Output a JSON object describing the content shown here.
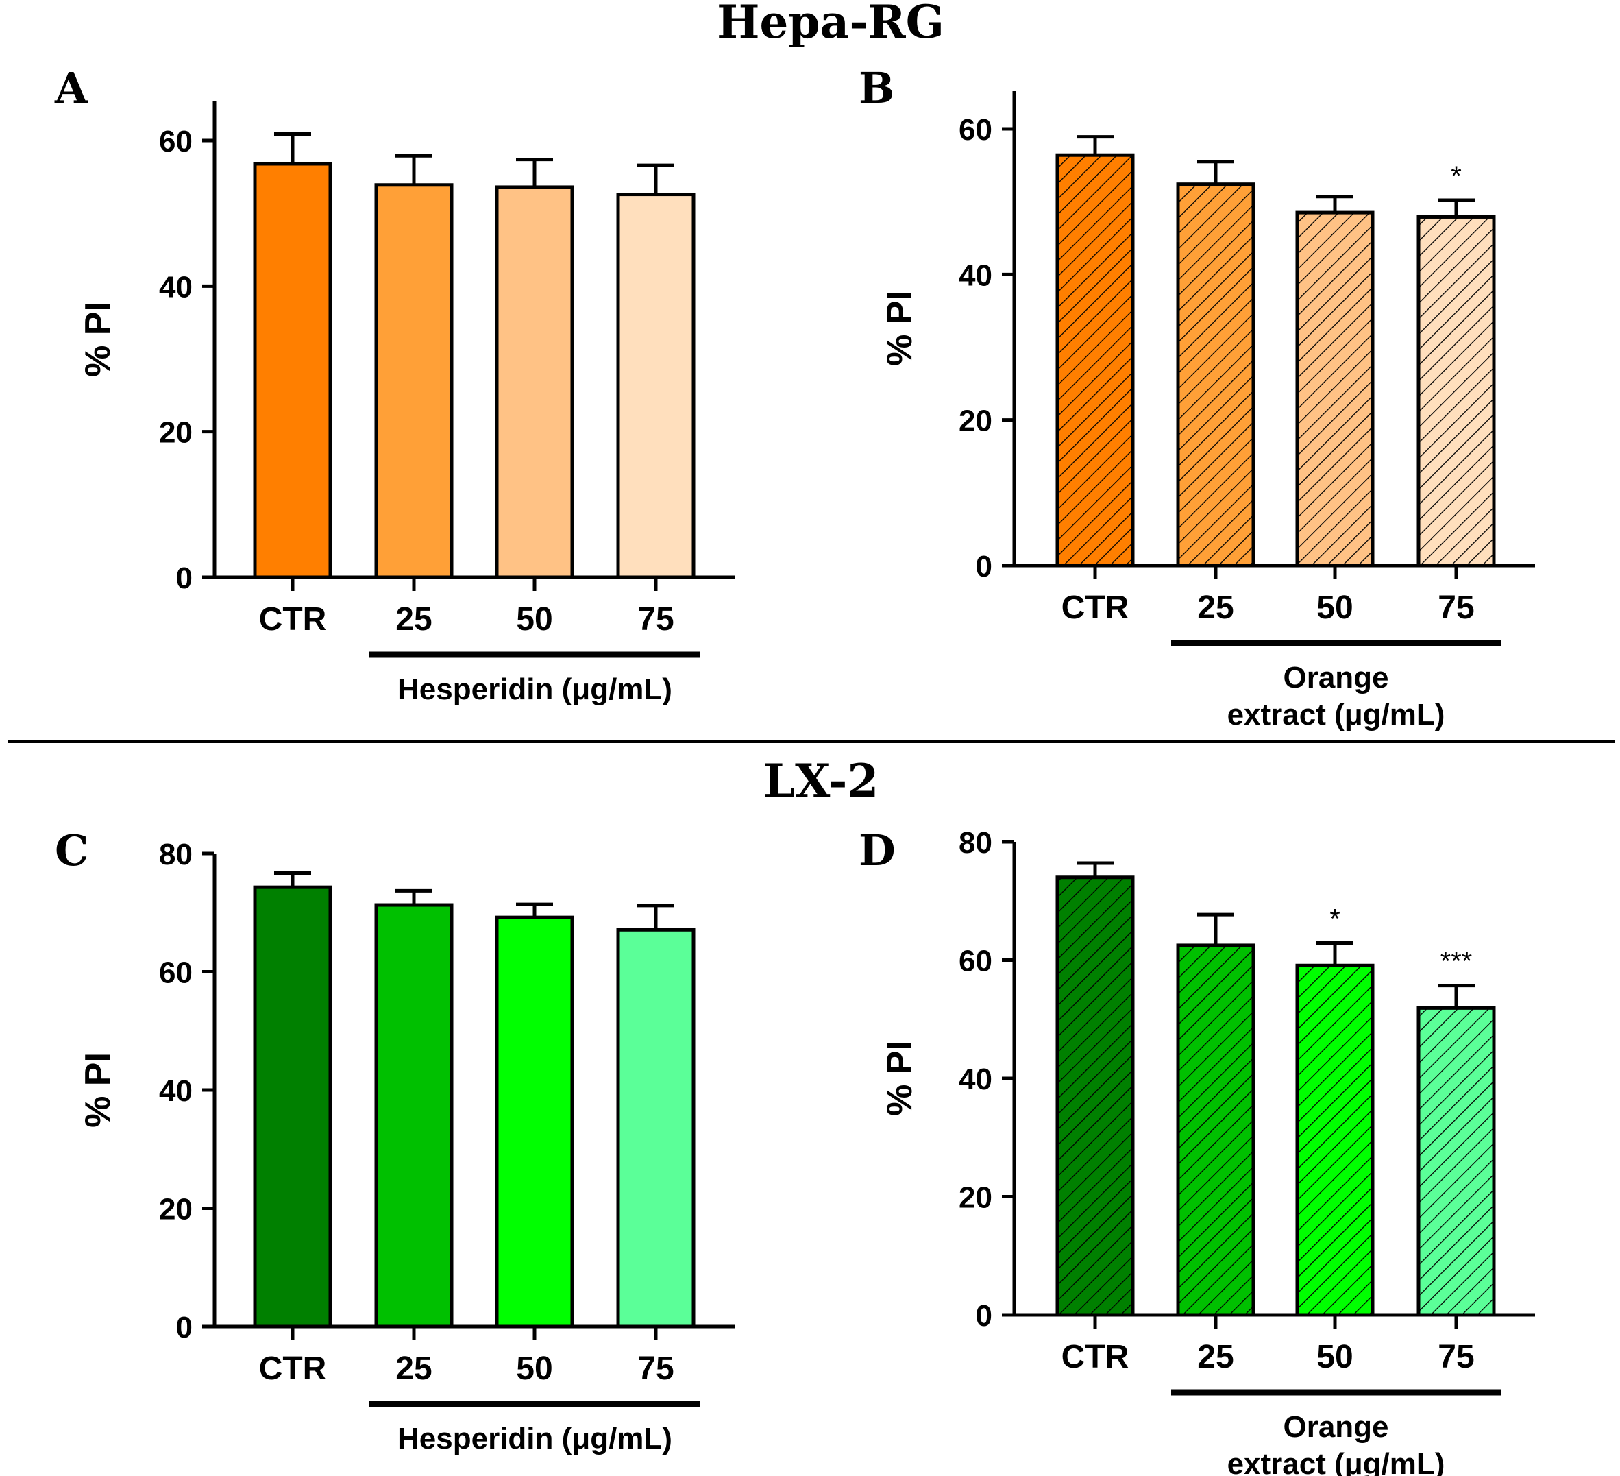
{
  "figure": {
    "top_title": "Hepa-RG",
    "bottom_title": "LX-2"
  },
  "chart_data": [
    {
      "id": "A",
      "panel_label": "A",
      "type": "bar",
      "ylabel": "% PI",
      "ylim": [
        0,
        65
      ],
      "yticks": [
        0,
        20,
        40,
        60
      ],
      "categories": [
        "CTR",
        "25",
        "50",
        "75"
      ],
      "group_label_lines": [
        "Hesperidin (μg/mL)"
      ],
      "values": [
        56.8,
        53.9,
        53.6,
        52.6
      ],
      "errors": [
        4.1,
        4.0,
        3.8,
        4.0
      ],
      "annotations": [
        "",
        "",
        "",
        ""
      ],
      "hatched": false,
      "colors": [
        "#ff7f00",
        "#ffa037",
        "#ffc285",
        "#ffdfbd"
      ]
    },
    {
      "id": "B",
      "panel_label": "B",
      "type": "bar",
      "ylabel": "% PI",
      "ylim": [
        0,
        65
      ],
      "yticks": [
        0,
        20,
        40,
        60
      ],
      "categories": [
        "CTR",
        "25",
        "50",
        "75"
      ],
      "group_label_lines": [
        "Orange",
        "extract (μg/mL)"
      ],
      "values": [
        56.4,
        52.4,
        48.5,
        47.9
      ],
      "errors": [
        2.5,
        3.1,
        2.2,
        2.3
      ],
      "annotations": [
        "",
        "",
        "",
        "*"
      ],
      "hatched": true,
      "colors": [
        "#ff7f00",
        "#ffa037",
        "#ffc285",
        "#ffdfbd"
      ]
    },
    {
      "id": "C",
      "panel_label": "C",
      "type": "bar",
      "ylabel": "% PI",
      "ylim": [
        0,
        80
      ],
      "yticks": [
        0,
        20,
        40,
        60,
        80
      ],
      "categories": [
        "CTR",
        "25",
        "50",
        "75"
      ],
      "group_label_lines": [
        "Hesperidin (μg/mL)"
      ],
      "values": [
        74.3,
        71.3,
        69.2,
        67.1
      ],
      "errors": [
        2.4,
        2.4,
        2.2,
        4.1
      ],
      "annotations": [
        "",
        "",
        "",
        ""
      ],
      "hatched": false,
      "colors": [
        "#008000",
        "#00c000",
        "#00ff00",
        "#5bff98"
      ]
    },
    {
      "id": "D",
      "panel_label": "D",
      "type": "bar",
      "ylabel": "% PI",
      "ylim": [
        0,
        80
      ],
      "yticks": [
        0,
        20,
        40,
        60,
        80
      ],
      "categories": [
        "CTR",
        "25",
        "50",
        "75"
      ],
      "group_label_lines": [
        "Orange",
        "extract (μg/mL)"
      ],
      "values": [
        74.0,
        62.5,
        59.1,
        51.9
      ],
      "errors": [
        2.4,
        5.2,
        3.8,
        3.8
      ],
      "annotations": [
        "",
        "",
        "*",
        "***"
      ],
      "hatched": true,
      "colors": [
        "#008000",
        "#00c000",
        "#00ff00",
        "#5bff98"
      ]
    }
  ]
}
